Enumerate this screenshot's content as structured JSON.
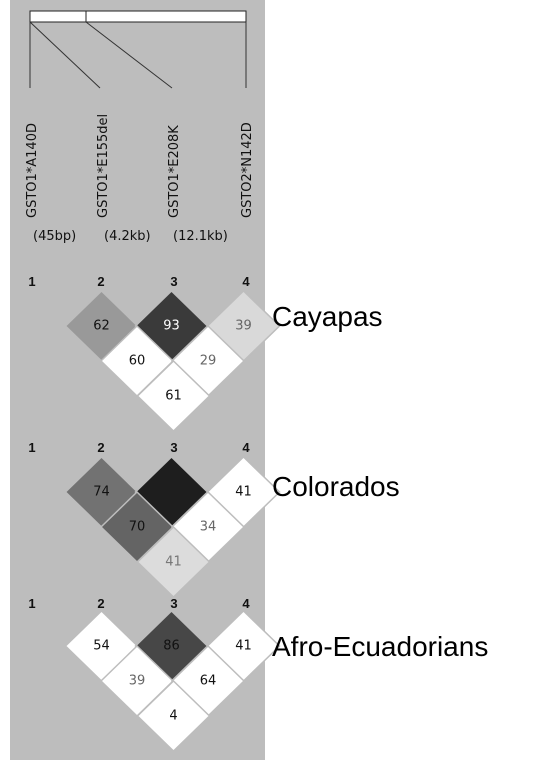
{
  "markers": [
    "GSTO1*A140D",
    "GSTO1*E155del",
    "GSTO1*E208K",
    "GSTO2*N142D"
  ],
  "distances": [
    "(45bp)",
    "(4.2kb)",
    "(12.1kb)"
  ],
  "marker_numbers": [
    "1",
    "2",
    "3",
    "4"
  ],
  "populations": [
    {
      "name": "Cayapas",
      "cells": [
        {
          "pair": "1-2",
          "label": "62",
          "fill": "#999999",
          "text_color": "#111111"
        },
        {
          "pair": "2-3",
          "label": "93",
          "fill": "#3a3a3a",
          "text_color": "#ffffff"
        },
        {
          "pair": "3-4",
          "label": "39",
          "fill": "#d9d9d9",
          "text_color": "#666666"
        },
        {
          "pair": "1-3",
          "label": "60",
          "fill": "#ffffff",
          "text_color": "#111111"
        },
        {
          "pair": "2-4",
          "label": "29",
          "fill": "#ffffff",
          "text_color": "#666666"
        },
        {
          "pair": "1-4",
          "label": "61",
          "fill": "#ffffff",
          "text_color": "#111111"
        }
      ]
    },
    {
      "name": "Colorados",
      "cells": [
        {
          "pair": "1-2",
          "label": "74",
          "fill": "#727272",
          "text_color": "#111111"
        },
        {
          "pair": "2-3",
          "label": "",
          "fill": "#1e1e1e",
          "text_color": "#ffffff"
        },
        {
          "pair": "3-4",
          "label": "41",
          "fill": "#ffffff",
          "text_color": "#111111"
        },
        {
          "pair": "1-3",
          "label": "70",
          "fill": "#646464",
          "text_color": "#111111"
        },
        {
          "pair": "2-4",
          "label": "34",
          "fill": "#ffffff",
          "text_color": "#666666"
        },
        {
          "pair": "1-4",
          "label": "41",
          "fill": "#dcdcdc",
          "text_color": "#777777"
        }
      ]
    },
    {
      "name": "Afro-Ecuadorians",
      "cells": [
        {
          "pair": "1-2",
          "label": "54",
          "fill": "#ffffff",
          "text_color": "#111111"
        },
        {
          "pair": "2-3",
          "label": "86",
          "fill": "#474747",
          "text_color": "#111111"
        },
        {
          "pair": "3-4",
          "label": "41",
          "fill": "#ffffff",
          "text_color": "#111111"
        },
        {
          "pair": "1-3",
          "label": "39",
          "fill": "#ffffff",
          "text_color": "#666666"
        },
        {
          "pair": "2-4",
          "label": "64",
          "fill": "#ffffff",
          "text_color": "#111111"
        },
        {
          "pair": "1-4",
          "label": "4",
          "fill": "#ffffff",
          "text_color": "#111111"
        }
      ]
    }
  ]
}
